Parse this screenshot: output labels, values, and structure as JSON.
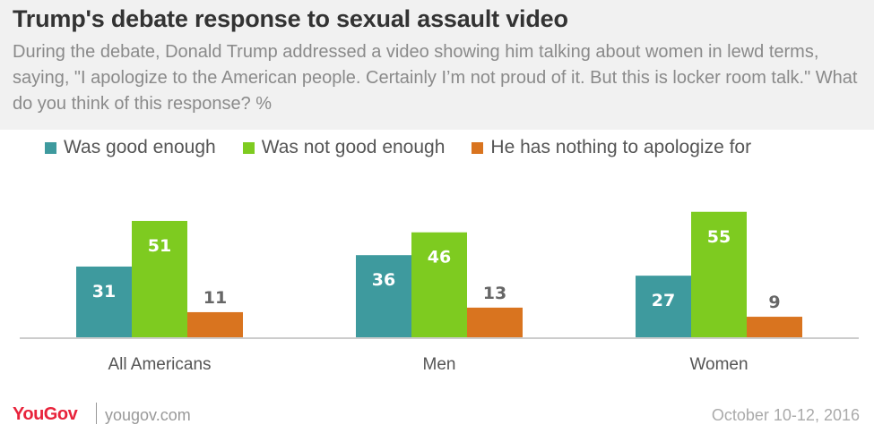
{
  "header": {
    "title": "Trump's debate response to sexual assault video",
    "subtitle": "During the debate, Donald Trump addressed a video showing him talking about women in lewd terms, saying, \"I apologize to the American people. Certainly I’m not proud of it. But this is locker room talk.\" What do you think of this response? %"
  },
  "chart_data": {
    "type": "bar",
    "title": "Trump's debate response to sexual assault video",
    "categories": [
      "All Americans",
      "Men",
      "Women"
    ],
    "series": [
      {
        "name": "Was good enough",
        "values": [
          31,
          36,
          27
        ],
        "color": "#3e9a9e",
        "label_color": "#ffffff"
      },
      {
        "name": "Was not good enough",
        "values": [
          51,
          46,
          55
        ],
        "color": "#7ecb20",
        "label_color": "#ffffff"
      },
      {
        "name": "He has nothing to apologize for",
        "values": [
          11,
          13,
          9
        ],
        "color": "#d9741f",
        "label_color": "#666666"
      }
    ],
    "ylim": [
      0,
      60
    ],
    "grid": false,
    "legend": "top"
  },
  "footer": {
    "brand": "YouGov",
    "url": "yougov.com",
    "date": "October 10-12, 2016"
  }
}
